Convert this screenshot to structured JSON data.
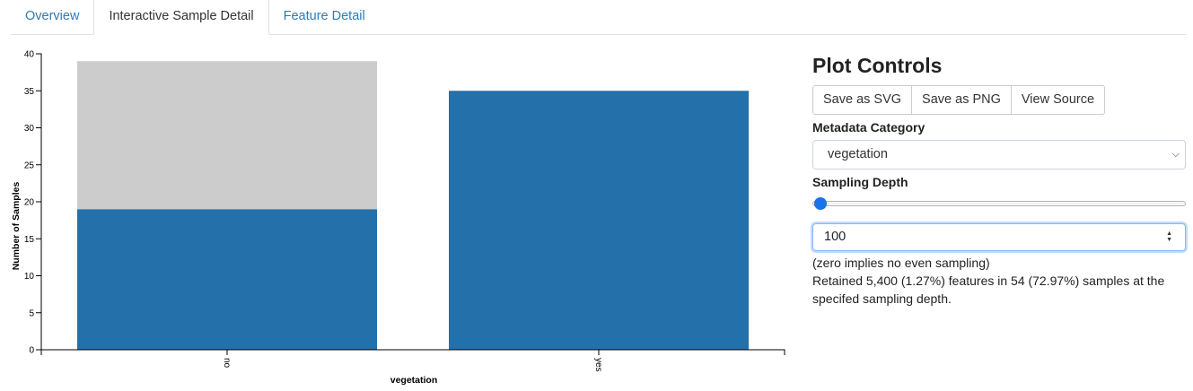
{
  "tabs": [
    {
      "label": "Overview",
      "active": false
    },
    {
      "label": "Interactive Sample Detail",
      "active": true
    },
    {
      "label": "Feature Detail",
      "active": false
    }
  ],
  "controls": {
    "title": "Plot Controls",
    "buttons": [
      "Save as SVG",
      "Save as PNG",
      "View Source"
    ],
    "metadata_label": "Metadata Category",
    "metadata_value": "vegetation",
    "depth_label": "Sampling Depth",
    "slider_value": 100,
    "depth_value": "100",
    "note1": "(zero implies no even sampling)",
    "note2": "Retained 5,400 (1.27%) features in 54 (72.97%) samples at the specifed sampling depth."
  },
  "chart_data": {
    "type": "bar",
    "categories": [
      "no",
      "yes"
    ],
    "series": [
      {
        "values": [
          19,
          35
        ],
        "color": "#2470aa"
      },
      {
        "values": [
          20,
          0
        ],
        "color": "#cccccc"
      }
    ],
    "ylabel": "Number of Samples",
    "xlabel": "vegetation",
    "ylim": [
      0,
      40
    ],
    "yticks": [
      0,
      5,
      10,
      15,
      20,
      25,
      30,
      35,
      40
    ]
  }
}
